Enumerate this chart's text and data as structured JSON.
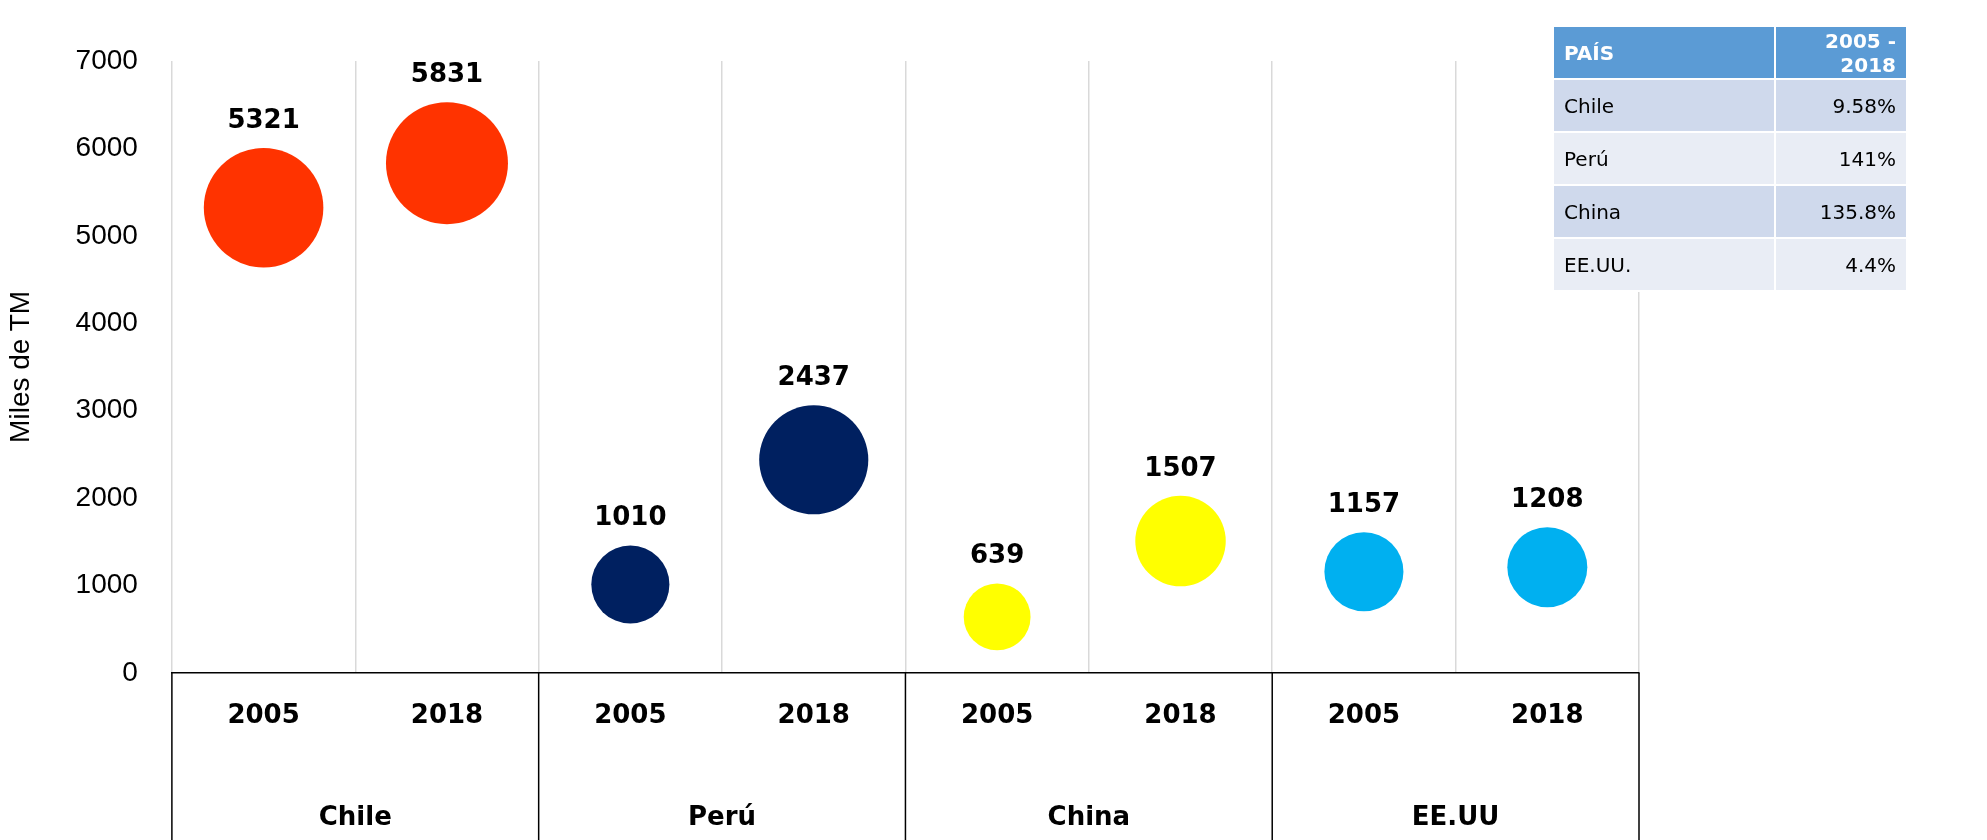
{
  "chart_data": [
    {
      "type": "bubble",
      "ylabel": "Miles de TM",
      "categories": [
        "2005",
        "2018",
        "2005",
        "2018",
        "2005",
        "2018",
        "2005",
        "2018"
      ],
      "values": [
        5321,
        5831,
        1010,
        2437,
        639,
        1507,
        1157,
        1208
      ],
      "sizes": [
        0.96,
        1,
        0.41,
        0.8,
        0.3,
        0.55,
        0.42,
        0.43
      ],
      "colors": [
        "#ff3300",
        "#ff3300",
        "#002060",
        "#002060",
        "#ffff00",
        "#ffff00",
        "#00b0f0",
        "#00b0f0"
      ],
      "ylim": [
        0,
        7000
      ],
      "yticks": [
        0,
        1000,
        2000,
        3000,
        4000,
        5000,
        6000,
        7000
      ],
      "grid": "x",
      "legend": false,
      "data_labels": true,
      "annotations": [
        "Chile",
        "Perú",
        "China",
        "EE.UU"
      ]
    },
    {
      "type": "other",
      "xlabel": "PAÍS",
      "ylabel": "2005 - 2018",
      "categories": [
        "Chile",
        "Perú",
        "China",
        "EE.UU."
      ],
      "value_labels": [
        "9.58%",
        "141%",
        "135.8%",
        "4.4%"
      ]
    }
  ]
}
